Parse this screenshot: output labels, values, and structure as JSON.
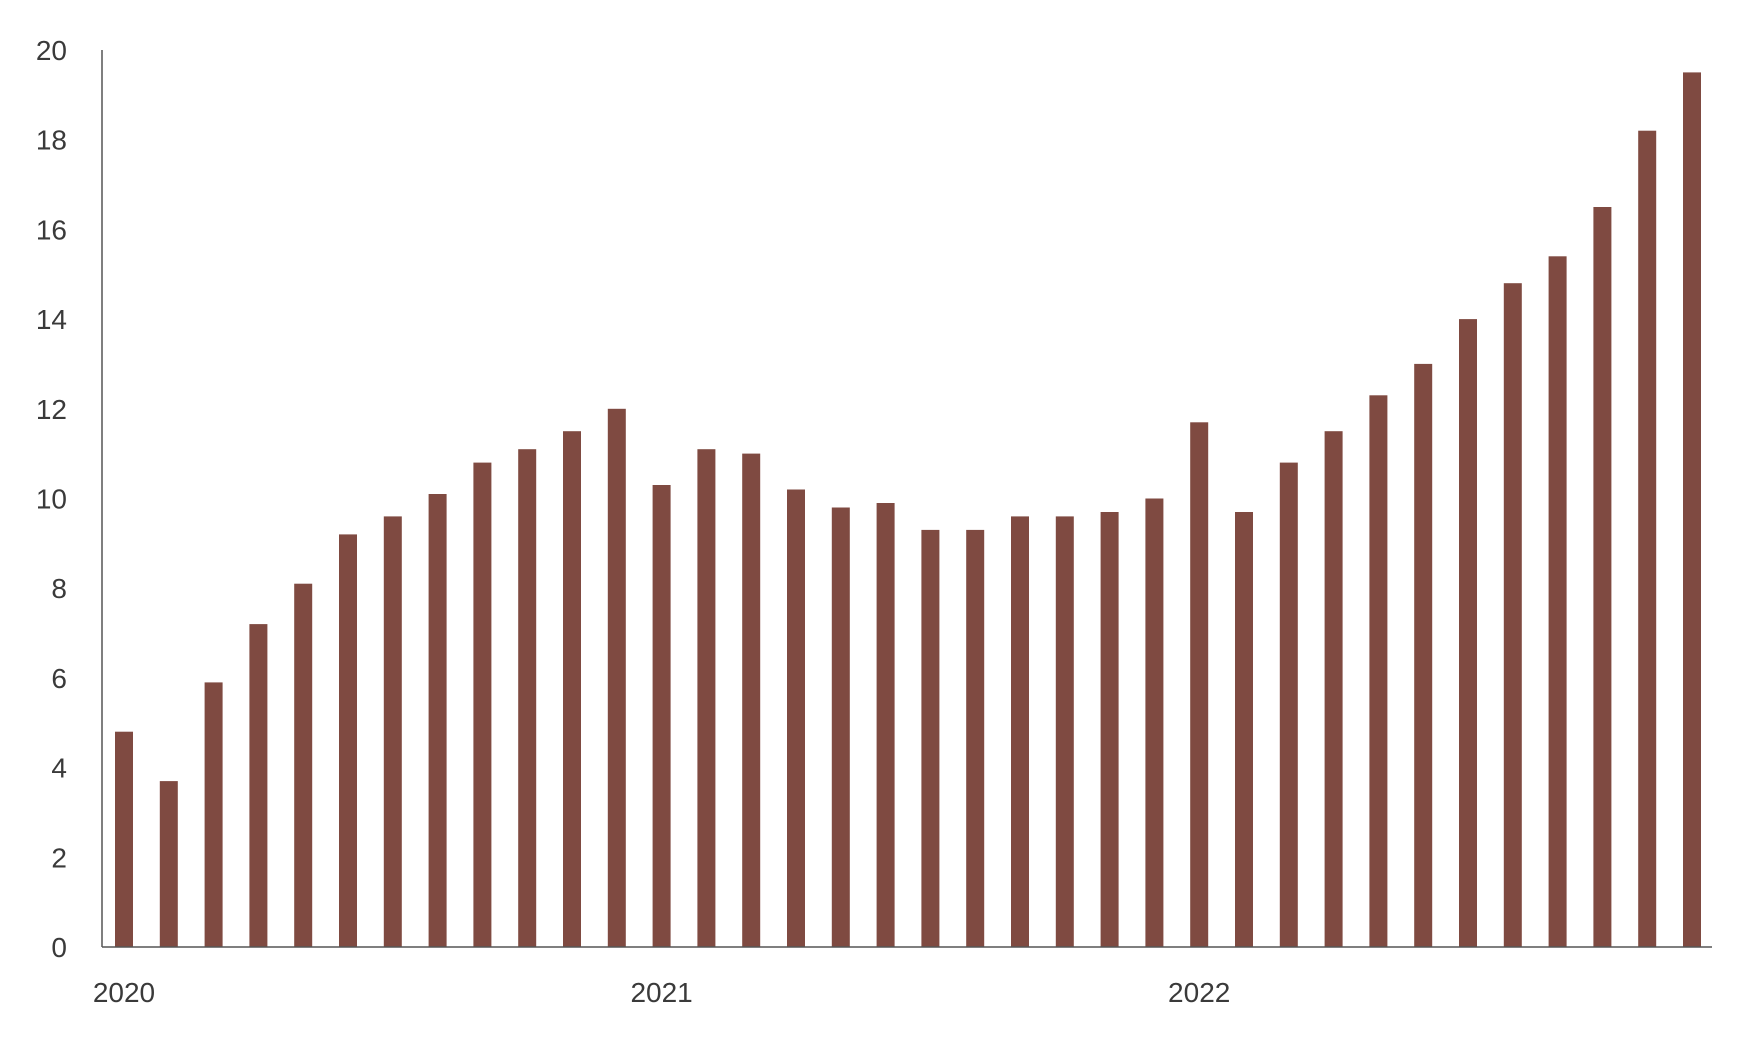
{
  "chart_data": {
    "type": "bar",
    "title": "",
    "xlabel": "",
    "ylabel": "",
    "ylim": [
      0,
      20
    ],
    "yticks": [
      0,
      2,
      4,
      6,
      8,
      10,
      12,
      14,
      16,
      18,
      20
    ],
    "grid": false,
    "legend": "none",
    "bar_color": "#7f4a41",
    "x_tick_labels": [
      {
        "label": "2020",
        "index": 0
      },
      {
        "label": "2021",
        "index": 12
      },
      {
        "label": "2022",
        "index": 24
      }
    ],
    "categories": [
      "2020-01",
      "2020-02",
      "2020-03",
      "2020-04",
      "2020-05",
      "2020-06",
      "2020-07",
      "2020-08",
      "2020-09",
      "2020-10",
      "2020-11",
      "2020-12",
      "2021-01",
      "2021-02",
      "2021-03",
      "2021-04",
      "2021-05",
      "2021-06",
      "2021-07",
      "2021-08",
      "2021-09",
      "2021-10",
      "2021-11",
      "2021-12",
      "2022-01",
      "2022-02",
      "2022-03",
      "2022-04",
      "2022-05",
      "2022-06",
      "2022-07",
      "2022-08",
      "2022-09",
      "2022-10",
      "2022-11",
      "2022-12"
    ],
    "values": [
      4.8,
      3.7,
      5.9,
      7.2,
      8.1,
      9.2,
      9.6,
      10.1,
      10.8,
      11.1,
      11.5,
      12.0,
      10.3,
      11.1,
      11.0,
      10.2,
      9.8,
      9.9,
      9.3,
      9.3,
      9.6,
      9.6,
      9.7,
      10.0,
      11.7,
      9.7,
      10.8,
      11.5,
      12.3,
      13.0,
      14.0,
      14.8,
      15.4,
      16.5,
      18.2,
      19.5
    ]
  }
}
